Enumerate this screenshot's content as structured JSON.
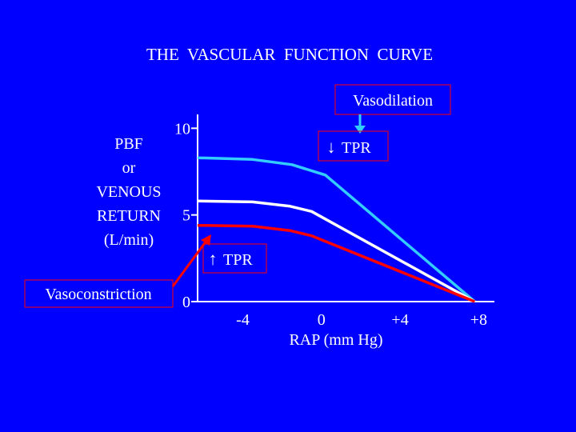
{
  "chart_data": {
    "type": "line",
    "title": "THE  VASCULAR  FUNCTION  CURVE",
    "ylabel_lines": [
      "PBF",
      "or",
      "VENOUS",
      "RETURN",
      "(L/min)"
    ],
    "xlabel": "RAP (mm Hg)",
    "y_ticks": [
      {
        "value": 0,
        "label": "0"
      },
      {
        "value": 5,
        "label": "5"
      },
      {
        "value": 10,
        "label": "10"
      }
    ],
    "x_ticks": [
      {
        "value": -4,
        "label": "-4"
      },
      {
        "value": 0,
        "label": "0"
      },
      {
        "value": 4,
        "label": "+4"
      },
      {
        "value": 8,
        "label": "+8"
      }
    ],
    "xlim": [
      -6.3,
      8.8
    ],
    "ylim": [
      0,
      10.8
    ],
    "grid": false,
    "series": [
      {
        "color": "#33ccff",
        "points": [
          [
            -6.3,
            8.3
          ],
          [
            -3.5,
            8.2
          ],
          [
            -1.5,
            7.9
          ],
          [
            0.2,
            7.3
          ],
          [
            7.8,
            0
          ]
        ]
      },
      {
        "color": "#ffffff",
        "points": [
          [
            -6.3,
            5.8
          ],
          [
            -3.5,
            5.75
          ],
          [
            -1.6,
            5.5
          ],
          [
            -0.5,
            5.2
          ],
          [
            7.8,
            0
          ]
        ]
      },
      {
        "color": "#ff0000",
        "points": [
          [
            -6.3,
            4.4
          ],
          [
            -3.5,
            4.35
          ],
          [
            -1.6,
            4.1
          ],
          [
            -0.5,
            3.8
          ],
          [
            7.8,
            0
          ]
        ]
      }
    ],
    "annotations": {
      "vasodilation": {
        "label": "Vasodilation",
        "arrow": "↓",
        "sub": "TPR",
        "color": "#ff0000"
      },
      "vasoconstriction": {
        "label": "Vasoconstriction",
        "arrow": "↑",
        "sub": "TPR",
        "color": "#ff0000"
      }
    }
  }
}
